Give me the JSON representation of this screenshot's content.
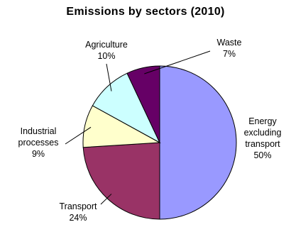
{
  "chart_data": {
    "type": "pie",
    "title": "Emissions by sectors (2010)",
    "start_angle_deg": 0,
    "direction": "clockwise",
    "slices": [
      {
        "name": "Energy excluding transport",
        "label_lines": [
          "Energy",
          "excluding",
          "transport"
        ],
        "value": 50,
        "pct_label": "50%",
        "color": "#9999ff"
      },
      {
        "name": "Transport",
        "label_lines": [
          "Transport"
        ],
        "value": 24,
        "pct_label": "24%",
        "color": "#993366"
      },
      {
        "name": "Industrial processes",
        "label_lines": [
          "Industrial",
          "processes"
        ],
        "value": 9,
        "pct_label": "9%",
        "color": "#ffffcc"
      },
      {
        "name": "Agriculture",
        "label_lines": [
          "Agriculture"
        ],
        "value": 10,
        "pct_label": "10%",
        "color": "#ccffff"
      },
      {
        "name": "Waste",
        "label_lines": [
          "Waste"
        ],
        "value": 7,
        "pct_label": "7%",
        "color": "#660066"
      }
    ]
  }
}
